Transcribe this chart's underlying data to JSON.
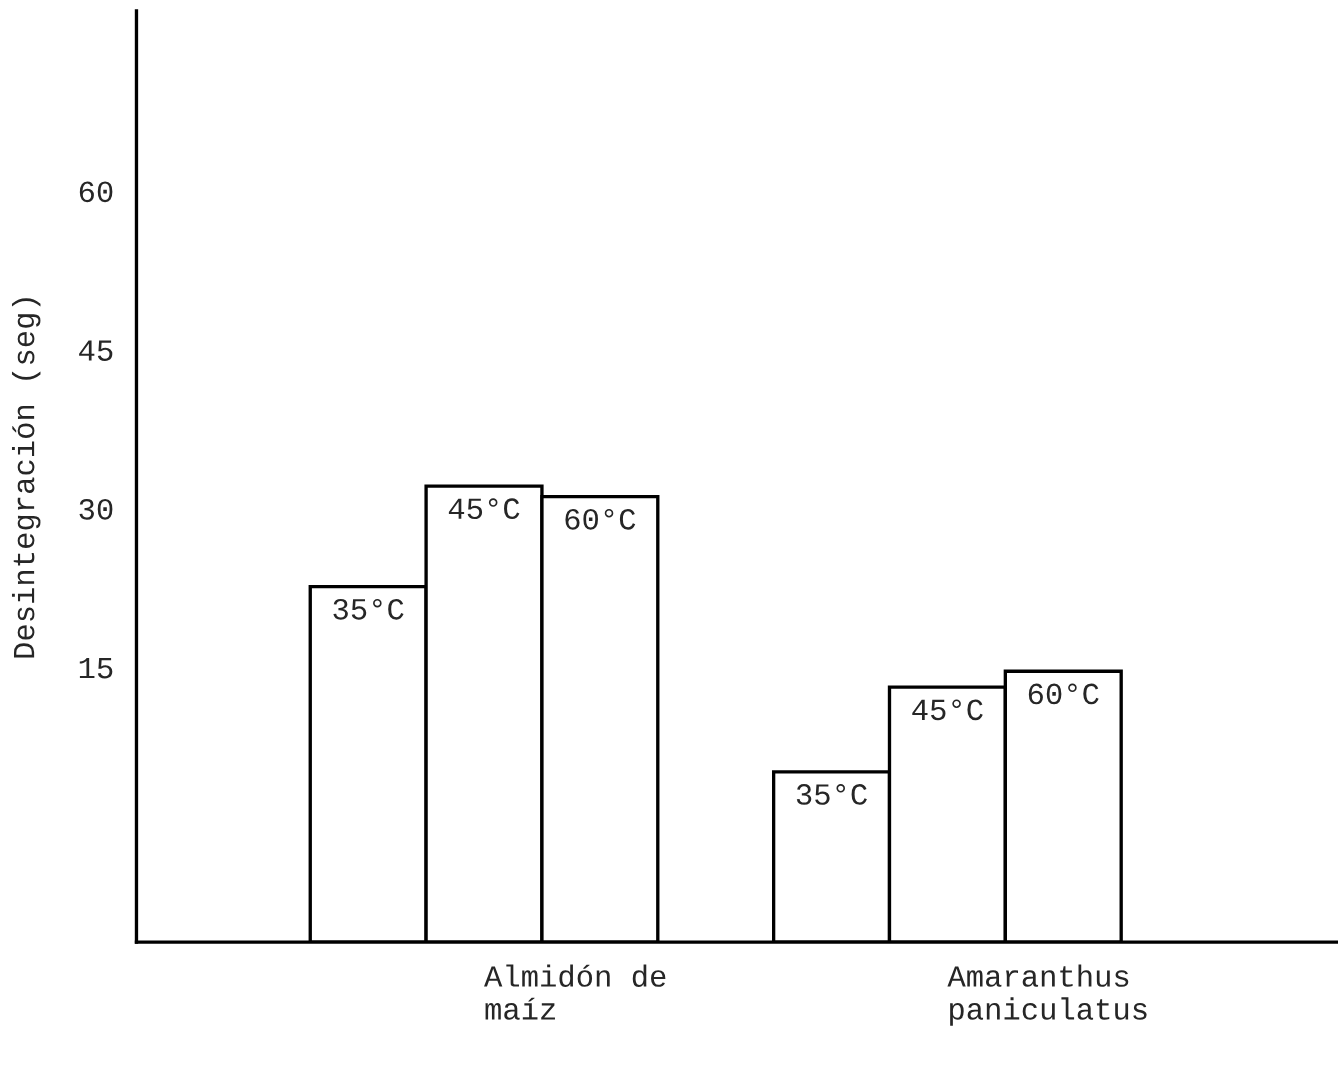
{
  "chart_data": {
    "type": "bar",
    "ylabel": "Desintegración (seg)",
    "categories": [
      "Almidón de\nmaíz",
      "Amaranthus\npaniculatus"
    ],
    "series": [
      {
        "name": "35°C",
        "color": "#ffffff",
        "values": [
          33.6,
          16.1
        ],
        "base": [
          -11,
          -11
        ]
      },
      {
        "name": "45°C",
        "color": "#ffffff",
        "values": [
          43.1,
          24.1
        ],
        "base": [
          -11,
          -11
        ]
      },
      {
        "name": "60°C",
        "color": "#ffffff",
        "values": [
          42.1,
          25.6
        ],
        "base": [
          -11,
          -11
        ]
      }
    ],
    "ylim": [
      -11,
      77
    ],
    "yticks": [
      15,
      30,
      45,
      60
    ],
    "grid": false,
    "legend": false
  }
}
